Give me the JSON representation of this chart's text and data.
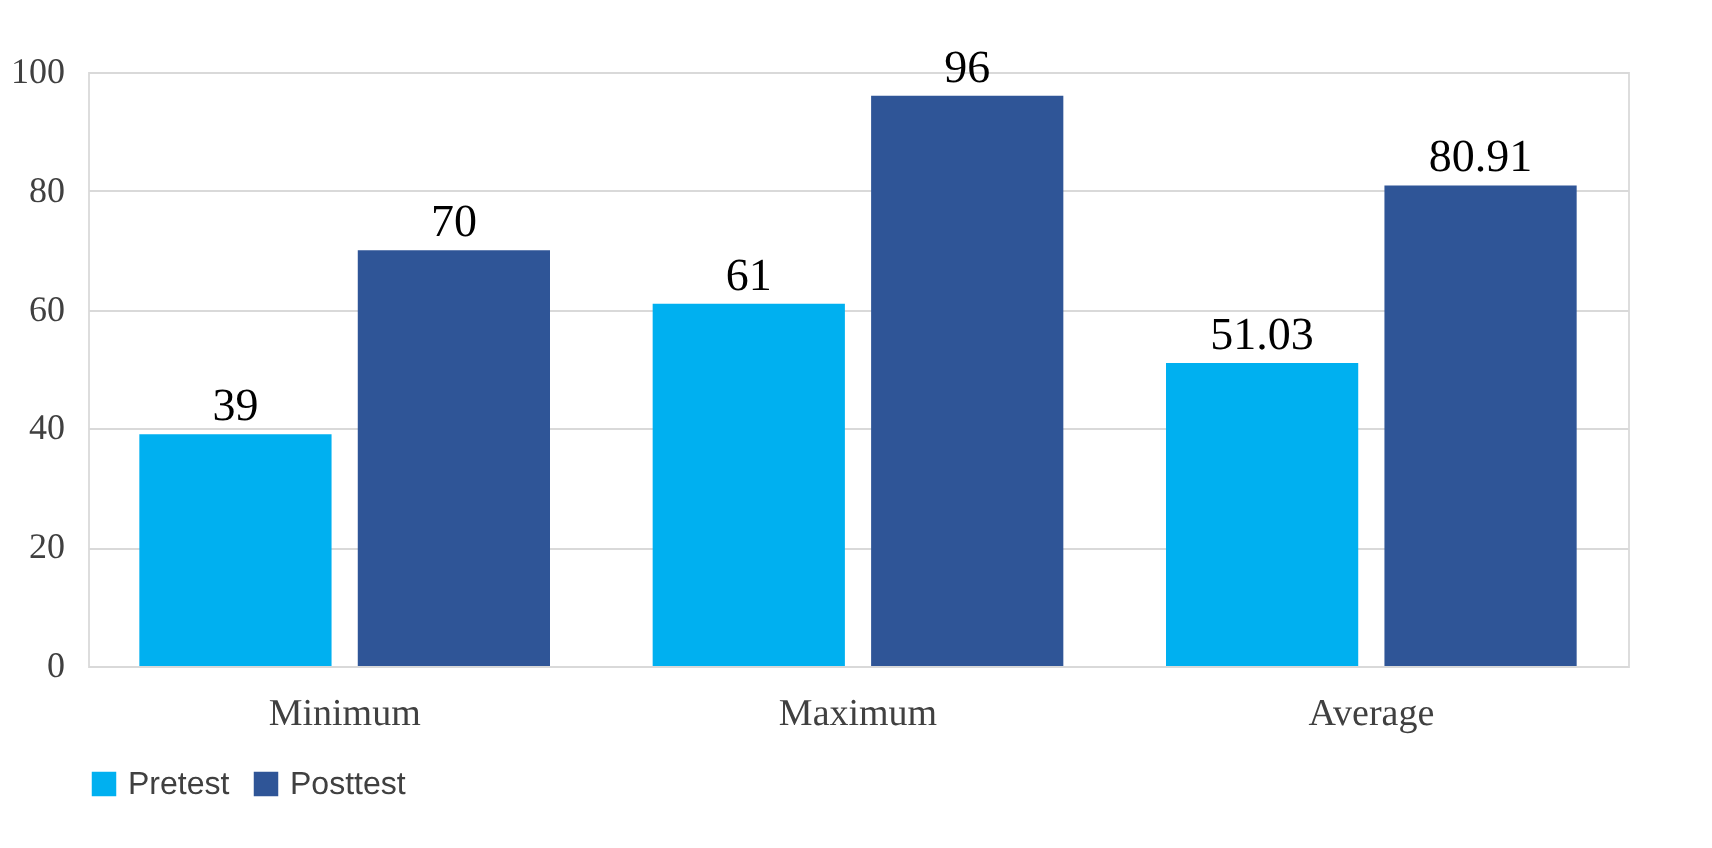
{
  "chart_data": {
    "type": "bar",
    "categories": [
      "Minimum",
      "Maximum",
      "Average"
    ],
    "series": [
      {
        "name": "Pretest",
        "color": "#00b0f0",
        "values": [
          39,
          61,
          51.03
        ]
      },
      {
        "name": "Posttest",
        "color": "#2f5597",
        "values": [
          70,
          96,
          80.91
        ]
      }
    ],
    "ylim": [
      0,
      100
    ],
    "yticks": [
      0,
      20,
      40,
      60,
      80,
      100
    ],
    "grid": "y",
    "legend": "bottom",
    "data_labels": true
  }
}
